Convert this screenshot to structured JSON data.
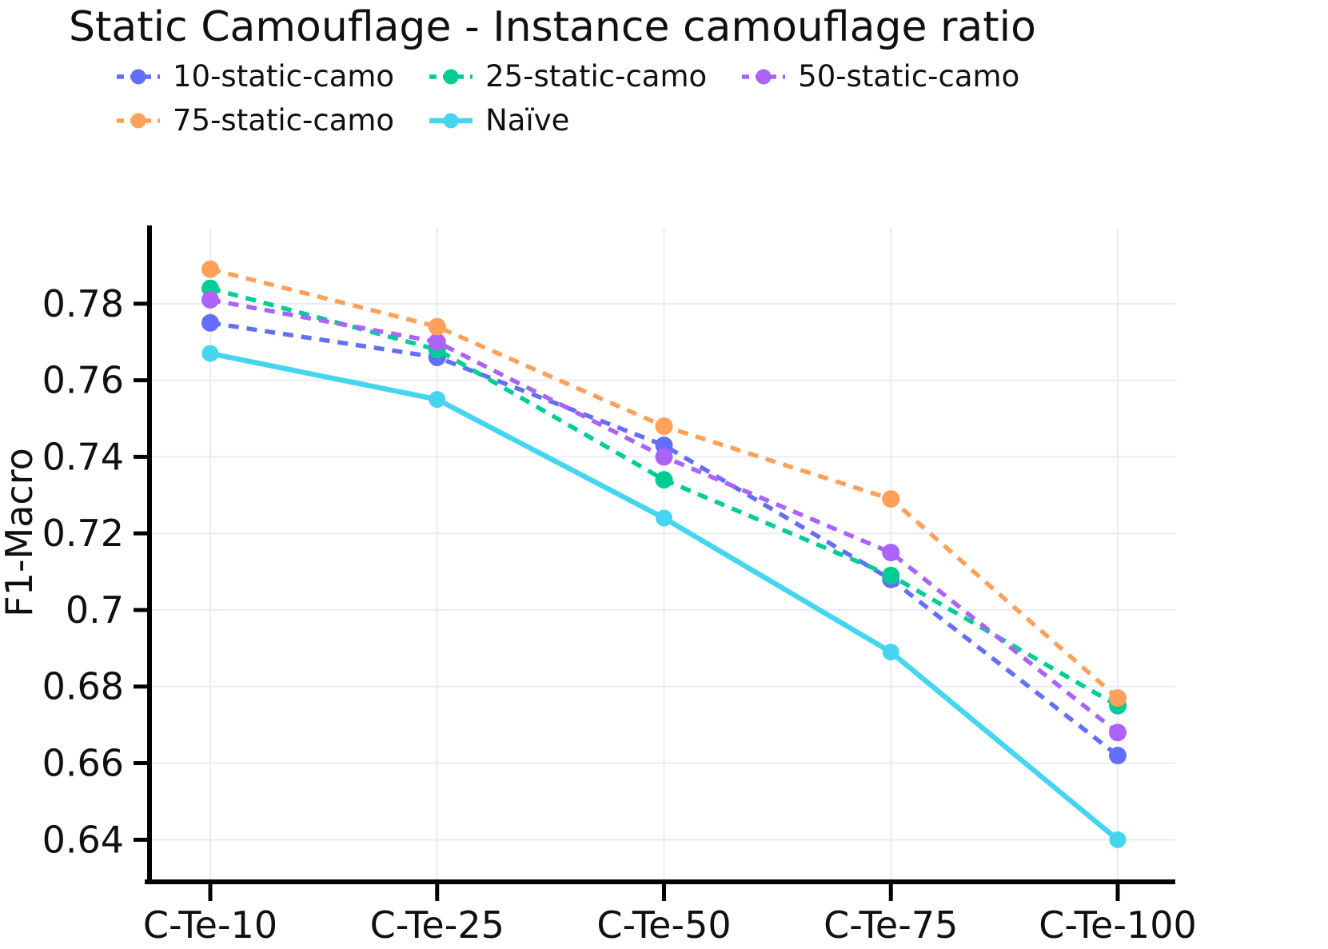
{
  "title": "Static Camouflage - Instance camouflage ratio",
  "chart_data": {
    "type": "line",
    "title": "Static Camouflage - Instance camouflage ratio",
    "xlabel": "",
    "ylabel": "F1-Macro",
    "categories": [
      "C-Te-10",
      "C-Te-25",
      "C-Te-50",
      "C-Te-75",
      "C-Te-100"
    ],
    "series": [
      {
        "name": "10-static-camo",
        "color": "#636efa",
        "line_style": "dashed",
        "values": [
          0.775,
          0.766,
          0.743,
          0.708,
          0.662
        ]
      },
      {
        "name": "25-static-camo",
        "color": "#00cc96",
        "line_style": "dashed",
        "values": [
          0.784,
          0.768,
          0.734,
          0.709,
          0.675
        ]
      },
      {
        "name": "50-static-camo",
        "color": "#ab63fa",
        "line_style": "dashed",
        "values": [
          0.781,
          0.77,
          0.74,
          0.715,
          0.668
        ]
      },
      {
        "name": "75-static-camo",
        "color": "#ffa15a",
        "line_style": "dashed",
        "values": [
          0.789,
          0.774,
          0.748,
          0.729,
          0.677
        ]
      },
      {
        "name": "Naïve",
        "color": "#45d5ef",
        "line_style": "solid",
        "values": [
          0.767,
          0.755,
          0.724,
          0.689,
          0.64
        ]
      }
    ],
    "yticks": [
      0.78,
      0.76,
      0.74,
      0.72,
      0.7,
      0.68,
      0.66,
      0.64
    ],
    "ytick_labels": [
      "0.78",
      "0.76",
      "0.74",
      "0.72",
      "0.7",
      "0.68",
      "0.66",
      "0.64"
    ],
    "ylim": [
      0.629,
      0.7998
    ],
    "grid": true,
    "legend_position": "top",
    "legend_rows": [
      [
        0,
        1,
        2
      ],
      [
        3,
        4
      ]
    ],
    "colors": {
      "grid": "#e9ecf5",
      "axis": "#000000",
      "text": "#101010",
      "background": "#ffffff"
    }
  }
}
